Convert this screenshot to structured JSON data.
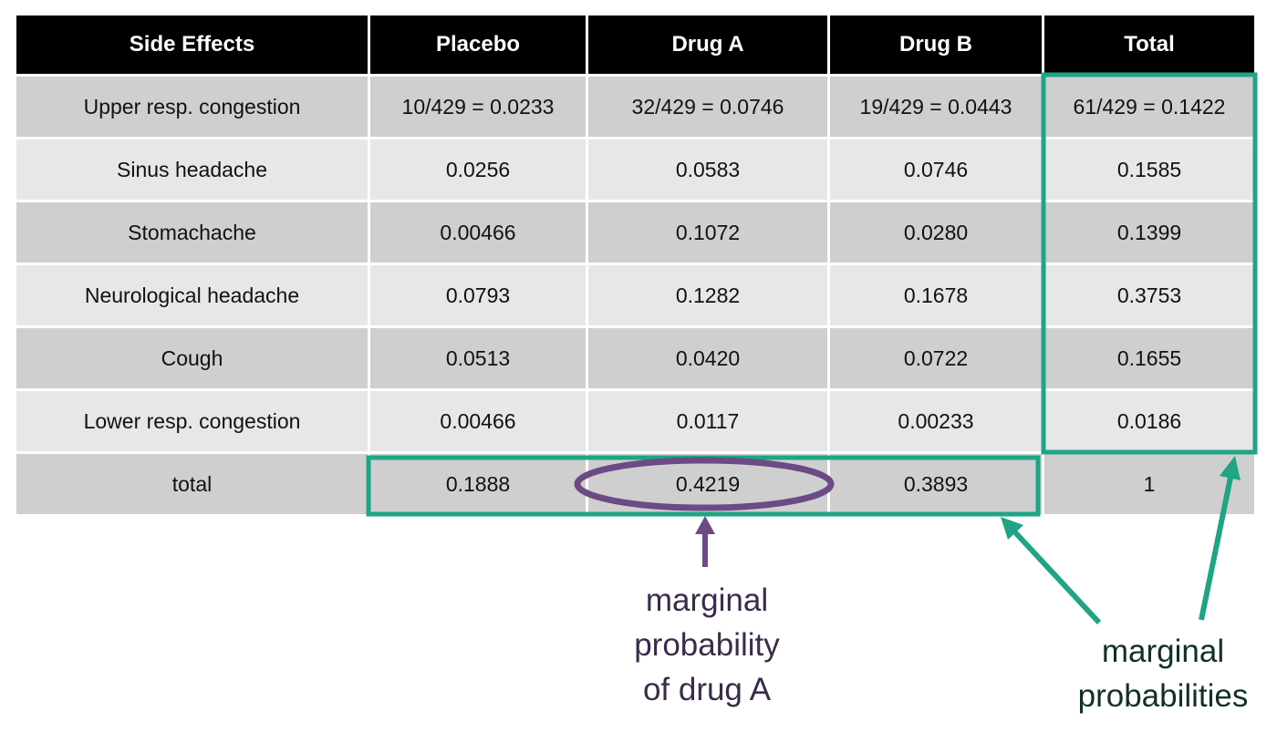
{
  "table": {
    "headers": [
      "Side Effects",
      "Placebo",
      "Drug A",
      "Drug B",
      "Total"
    ],
    "rows": [
      [
        "Upper resp. congestion",
        "10/429 = 0.0233",
        "32/429 = 0.0746",
        "19/429 = 0.0443",
        "61/429 = 0.1422"
      ],
      [
        "Sinus headache",
        "0.0256",
        "0.0583",
        "0.0746",
        "0.1585"
      ],
      [
        "Stomachache",
        "0.00466",
        "0.1072",
        "0.0280",
        "0.1399"
      ],
      [
        "Neurological headache",
        "0.0793",
        "0.1282",
        "0.1678",
        "0.3753"
      ],
      [
        "Cough",
        "0.0513",
        "0.0420",
        "0.0722",
        "0.1655"
      ],
      [
        "Lower resp. congestion",
        "0.00466",
        "0.0117",
        "0.00233",
        "0.0186"
      ],
      [
        "total",
        "0.1888",
        "0.4219",
        "0.3893",
        "1"
      ]
    ]
  },
  "annotations": {
    "drug_a": {
      "lines": [
        "marginal",
        "probability",
        "of drug A"
      ]
    },
    "marginals": {
      "lines": [
        "marginal",
        "probabilities"
      ]
    }
  },
  "colors": {
    "header_bg": "#000000",
    "header_text": "#ffffff",
    "row_dark": "#cfcfcf",
    "row_light": "#e7e7e7",
    "highlight_green": "#1fa584",
    "highlight_purple": "#6b4a85"
  }
}
